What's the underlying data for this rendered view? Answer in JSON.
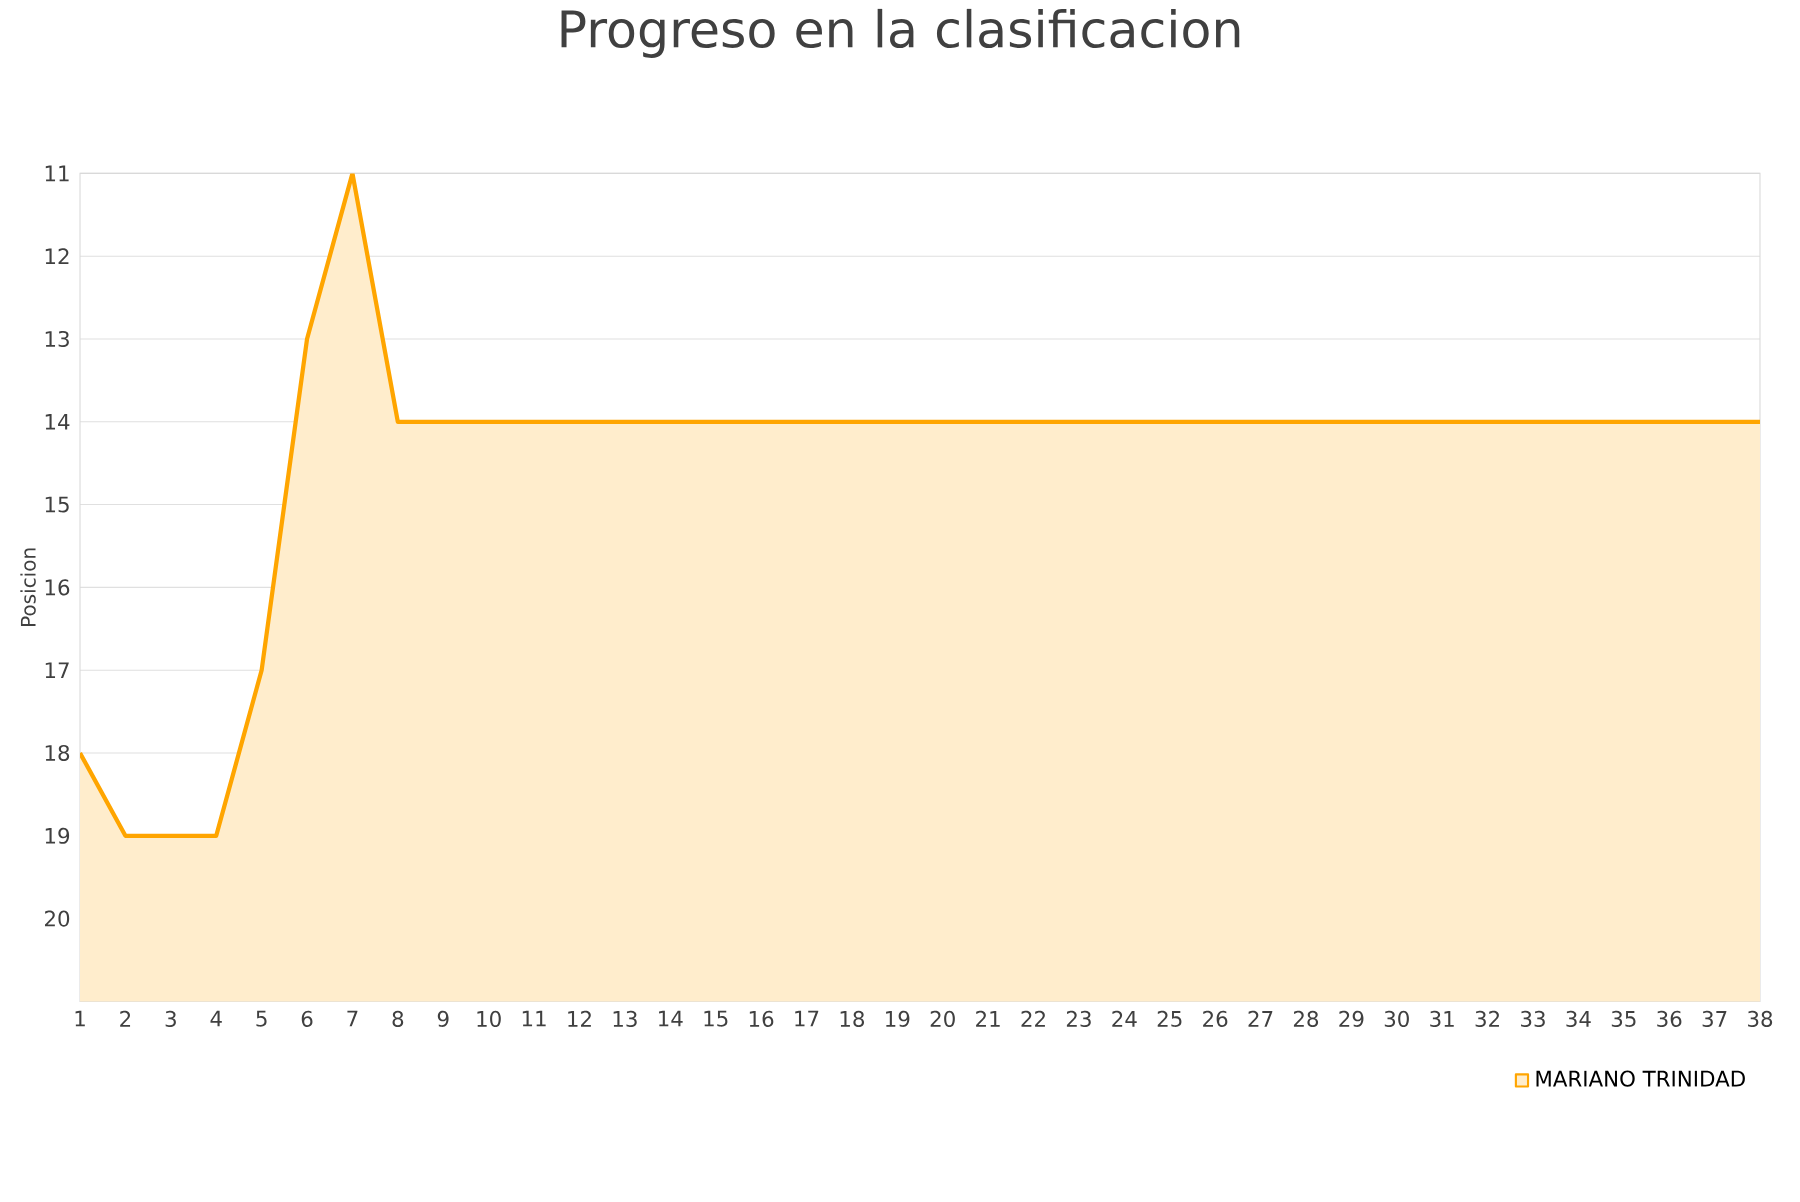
{
  "chart_data": {
    "type": "area",
    "title": "Progreso en la clasificacion",
    "ylabel": "Posicion",
    "x": [
      1,
      2,
      3,
      4,
      5,
      6,
      7,
      8,
      9,
      10,
      11,
      12,
      13,
      14,
      15,
      16,
      17,
      18,
      19,
      20,
      21,
      22,
      23,
      24,
      25,
      26,
      27,
      28,
      29,
      30,
      31,
      32,
      33,
      34,
      35,
      36,
      37,
      38
    ],
    "series": [
      {
        "name": "MARIANO TRINIDAD",
        "color": "#ffa500",
        "values": [
          18,
          19,
          19,
          19,
          17,
          13,
          11,
          14,
          14,
          14,
          14,
          14,
          14,
          14,
          14,
          14,
          14,
          14,
          14,
          14,
          14,
          14,
          14,
          14,
          14,
          14,
          14,
          14,
          14,
          14,
          14,
          14,
          14,
          14,
          14,
          14,
          14,
          14
        ]
      }
    ],
    "xlim": [
      1,
      38
    ],
    "xticks": [
      1,
      2,
      3,
      4,
      5,
      6,
      7,
      8,
      9,
      10,
      11,
      12,
      13,
      14,
      15,
      16,
      17,
      18,
      19,
      20,
      21,
      22,
      23,
      24,
      25,
      26,
      27,
      28,
      29,
      30,
      31,
      32,
      33,
      34,
      35,
      36,
      37,
      38
    ],
    "ylim": [
      21,
      11
    ],
    "yticks": [
      11,
      12,
      13,
      14,
      15,
      16,
      17,
      18,
      19,
      20
    ],
    "grid": "y",
    "legend": "bottom right",
    "marker": "none",
    "line_style": "solid"
  }
}
